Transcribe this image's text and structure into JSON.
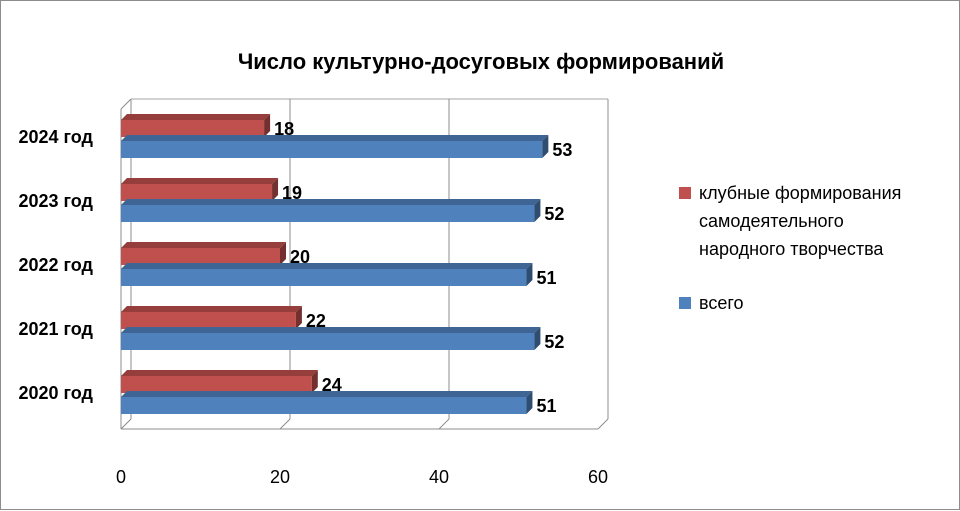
{
  "chart_data": {
    "type": "bar",
    "orientation": "horizontal",
    "style": "3d",
    "title": "Число культурно-досуговых формирований",
    "categories": [
      "2024 год",
      "2023 год",
      "2022 год",
      "2021 год",
      "2020 год"
    ],
    "series": [
      {
        "name_lines": [
          "клубные формирования",
          "самодеятельного",
          "народного творчества"
        ],
        "color": "#c0504d",
        "values": [
          18,
          19,
          20,
          22,
          24
        ]
      },
      {
        "name_lines": [
          "всего"
        ],
        "color": "#4f81bd",
        "values": [
          53,
          52,
          51,
          52,
          51
        ]
      }
    ],
    "xlim": [
      0,
      60
    ],
    "xticks": [
      "0",
      "20",
      "40",
      "60"
    ],
    "grid": true,
    "legend_position": "right"
  }
}
